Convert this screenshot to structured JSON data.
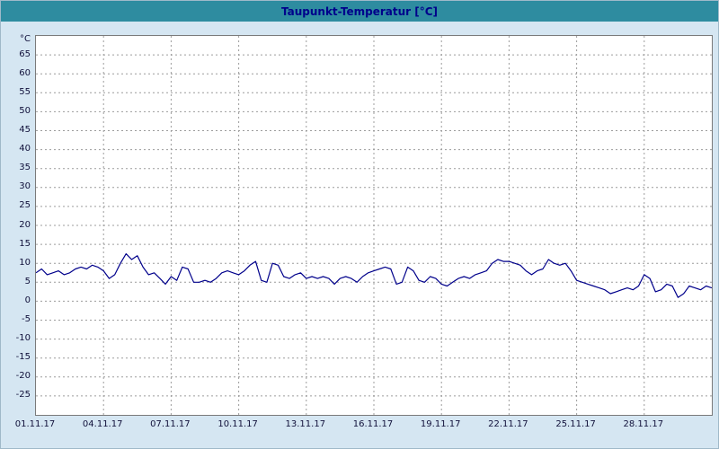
{
  "window": {
    "title": "Taupunkt-Temperatur [°C]"
  },
  "colors": {
    "titlebar_bg": "#2E8CA0",
    "title_text": "#00008B",
    "background": "#D5E6F2",
    "plot_bg": "#FFFFFF",
    "plot_border": "#7A7A7A",
    "grid": "#9C9C9C",
    "line": "#00008B",
    "axis_text": "#10103A"
  },
  "chart_data": {
    "type": "line",
    "title": "Taupunkt-Temperatur [°C]",
    "ylabel": "°C",
    "xlabel": "",
    "xlim": [
      1,
      31
    ],
    "ylim": [
      -30,
      70
    ],
    "grid": "dashed",
    "legend_position": "none",
    "y_ticks": [
      65,
      60,
      55,
      50,
      45,
      40,
      35,
      30,
      25,
      20,
      15,
      10,
      5,
      0,
      -5,
      -10,
      -15,
      -20,
      -25
    ],
    "x_ticks": [
      {
        "day": 1,
        "label": "01.11.17"
      },
      {
        "day": 4,
        "label": "04.11.17"
      },
      {
        "day": 7,
        "label": "07.11.17"
      },
      {
        "day": 10,
        "label": "10.11.17"
      },
      {
        "day": 13,
        "label": "13.11.17"
      },
      {
        "day": 16,
        "label": "16.11.17"
      },
      {
        "day": 19,
        "label": "19.11.17"
      },
      {
        "day": 22,
        "label": "22.11.17"
      },
      {
        "day": 25,
        "label": "25.11.17"
      },
      {
        "day": 28,
        "label": "28.11.17"
      }
    ],
    "series": [
      {
        "name": "Taupunkt-Temperatur",
        "unit": "°C",
        "x_start_day": 1,
        "x_step_days": 0.25,
        "values": [
          7.5,
          8.5,
          7,
          7.5,
          8,
          7,
          7.5,
          8.5,
          9,
          8.5,
          9.5,
          9,
          8,
          6,
          7,
          10,
          12.5,
          11,
          12,
          9,
          7,
          7.5,
          6,
          4.5,
          6.5,
          5.5,
          9,
          8.5,
          5,
          5,
          5.5,
          5,
          6,
          7.5,
          8,
          7.5,
          7,
          8,
          9.5,
          10.5,
          5.5,
          5,
          10,
          9.5,
          6.5,
          6,
          7,
          7.5,
          6,
          6.5,
          6,
          6.5,
          6,
          4.5,
          6,
          6.5,
          6,
          5,
          6.5,
          7.5,
          8,
          8.5,
          9,
          8.5,
          4.5,
          5,
          9,
          8,
          5.5,
          5,
          6.5,
          6,
          4.5,
          4,
          5,
          6,
          6.5,
          6,
          7,
          7.5,
          8,
          10,
          11,
          10.5,
          10.5,
          10,
          9.5,
          8,
          7,
          8,
          8.5,
          11,
          10,
          9.5,
          10,
          8,
          5.5,
          5,
          4.5,
          4,
          3.5,
          3,
          2,
          2.5,
          3,
          3.5,
          3,
          4,
          7,
          6,
          2.5,
          3,
          4.5,
          4,
          1,
          2,
          4,
          3.5,
          3,
          4,
          3.5
        ]
      }
    ]
  }
}
